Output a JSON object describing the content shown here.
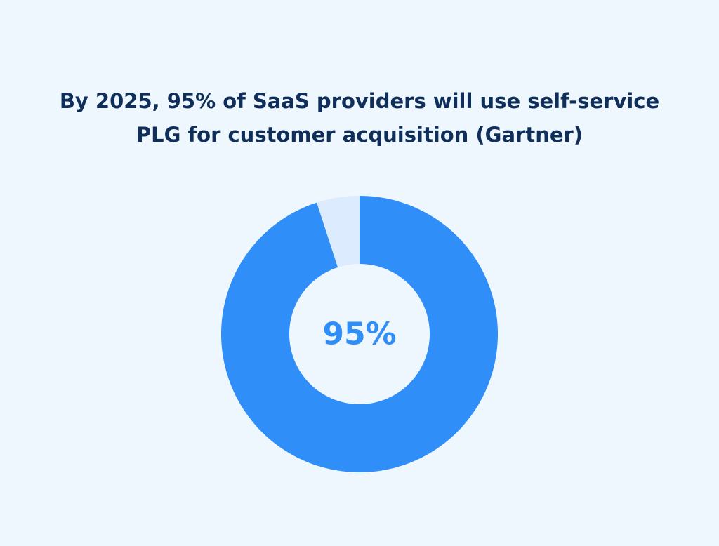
{
  "chart_data": {
    "type": "pie",
    "title_lines": [
      "By 2025, 95% of SaaS providers will use self-service",
      "PLG for customer acquisition (Gartner)"
    ],
    "center_label": "95%",
    "slices": [
      {
        "value": 95,
        "color": "#2f8ef7"
      },
      {
        "value": 5,
        "color": "#dcebfd"
      }
    ],
    "hole_color": "#eef6fe",
    "label_color": "#2f8ef7"
  }
}
